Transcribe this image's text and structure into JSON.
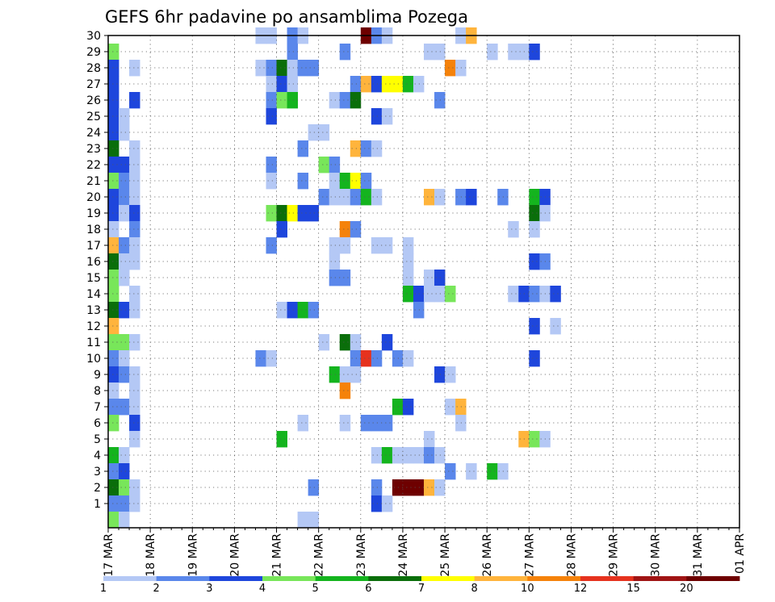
{
  "chart_data": {
    "type": "heatmap",
    "title": "GEFS 6hr padavine po ansamblima Pozega",
    "xlabel": "",
    "ylabel": "",
    "x_ticks": [
      "17 MAR",
      "18 MAR",
      "19 MAR",
      "20 MAR",
      "21 MAR",
      "22 MAR",
      "23 MAR",
      "24 MAR",
      "25 MAR",
      "26 MAR",
      "27 MAR",
      "28 MAR",
      "29 MAR",
      "30 MAR",
      "31 MAR",
      "01 APR"
    ],
    "y_ticks": [
      1,
      2,
      3,
      4,
      5,
      6,
      7,
      8,
      9,
      10,
      11,
      12,
      13,
      14,
      15,
      16,
      17,
      18,
      19,
      20,
      21,
      22,
      23,
      24,
      25,
      26,
      27,
      28,
      29,
      30
    ],
    "time_steps_per_day": 4,
    "grid": true,
    "legend": {
      "placement": "bottom",
      "thresholds": [
        "1",
        "2",
        "3",
        "4",
        "5",
        "6",
        "7",
        "8",
        "10",
        "12",
        "15",
        "20"
      ],
      "colors": [
        "#b4c8f5",
        "#5a87eb",
        "#1e46dc",
        "#78e65a",
        "#14b41e",
        "#0a6e0a",
        "#ffff00",
        "#ffb43c",
        "#f5820a",
        "#e6321e",
        "#a01414",
        "#6e0000"
      ]
    },
    "cells": [
      {
        "e": 30,
        "t": 14,
        "c": 0
      },
      {
        "e": 30,
        "t": 15,
        "c": 0
      },
      {
        "e": 30,
        "t": 17,
        "c": 1
      },
      {
        "e": 30,
        "t": 18,
        "c": 0
      },
      {
        "e": 30,
        "t": 24,
        "c": 11
      },
      {
        "e": 30,
        "t": 25,
        "c": 1
      },
      {
        "e": 30,
        "t": 26,
        "c": 0
      },
      {
        "e": 30,
        "t": 33,
        "c": 0
      },
      {
        "e": 30,
        "t": 34,
        "c": 7
      },
      {
        "e": 29,
        "t": 0,
        "c": 3
      },
      {
        "e": 29,
        "t": 17,
        "c": 1
      },
      {
        "e": 29,
        "t": 22,
        "c": 1
      },
      {
        "e": 29,
        "t": 30,
        "c": 0
      },
      {
        "e": 29,
        "t": 31,
        "c": 0
      },
      {
        "e": 29,
        "t": 36,
        "c": 0
      },
      {
        "e": 29,
        "t": 38,
        "c": 0
      },
      {
        "e": 29,
        "t": 39,
        "c": 0
      },
      {
        "e": 29,
        "t": 40,
        "c": 2
      },
      {
        "e": 28,
        "t": 0,
        "c": 2
      },
      {
        "e": 28,
        "t": 2,
        "c": 0
      },
      {
        "e": 28,
        "t": 14,
        "c": 0
      },
      {
        "e": 28,
        "t": 15,
        "c": 1
      },
      {
        "e": 28,
        "t": 16,
        "c": 5
      },
      {
        "e": 28,
        "t": 17,
        "c": 0
      },
      {
        "e": 28,
        "t": 18,
        "c": 1
      },
      {
        "e": 28,
        "t": 19,
        "c": 1
      },
      {
        "e": 28,
        "t": 32,
        "c": 8
      },
      {
        "e": 28,
        "t": 33,
        "c": 0
      },
      {
        "e": 27,
        "t": 0,
        "c": 2
      },
      {
        "e": 27,
        "t": 15,
        "c": 0
      },
      {
        "e": 27,
        "t": 16,
        "c": 2
      },
      {
        "e": 27,
        "t": 17,
        "c": 0
      },
      {
        "e": 27,
        "t": 23,
        "c": 1
      },
      {
        "e": 27,
        "t": 24,
        "c": 7
      },
      {
        "e": 27,
        "t": 25,
        "c": 2
      },
      {
        "e": 27,
        "t": 26,
        "c": 6
      },
      {
        "e": 27,
        "t": 27,
        "c": 6
      },
      {
        "e": 27,
        "t": 28,
        "c": 4
      },
      {
        "e": 27,
        "t": 29,
        "c": 0
      },
      {
        "e": 26,
        "t": 0,
        "c": 2
      },
      {
        "e": 26,
        "t": 2,
        "c": 2
      },
      {
        "e": 26,
        "t": 15,
        "c": 1
      },
      {
        "e": 26,
        "t": 16,
        "c": 3
      },
      {
        "e": 26,
        "t": 17,
        "c": 4
      },
      {
        "e": 26,
        "t": 21,
        "c": 0
      },
      {
        "e": 26,
        "t": 22,
        "c": 1
      },
      {
        "e": 26,
        "t": 23,
        "c": 5
      },
      {
        "e": 26,
        "t": 31,
        "c": 1
      },
      {
        "e": 25,
        "t": 0,
        "c": 2
      },
      {
        "e": 25,
        "t": 1,
        "c": 0
      },
      {
        "e": 25,
        "t": 15,
        "c": 2
      },
      {
        "e": 25,
        "t": 25,
        "c": 2
      },
      {
        "e": 25,
        "t": 26,
        "c": 0
      },
      {
        "e": 24,
        "t": 0,
        "c": 2
      },
      {
        "e": 24,
        "t": 1,
        "c": 0
      },
      {
        "e": 24,
        "t": 19,
        "c": 0
      },
      {
        "e": 24,
        "t": 20,
        "c": 0
      },
      {
        "e": 23,
        "t": 0,
        "c": 5
      },
      {
        "e": 23,
        "t": 2,
        "c": 0
      },
      {
        "e": 23,
        "t": 18,
        "c": 1
      },
      {
        "e": 23,
        "t": 23,
        "c": 7
      },
      {
        "e": 23,
        "t": 24,
        "c": 1
      },
      {
        "e": 23,
        "t": 25,
        "c": 0
      },
      {
        "e": 22,
        "t": 0,
        "c": 2
      },
      {
        "e": 22,
        "t": 1,
        "c": 2
      },
      {
        "e": 22,
        "t": 2,
        "c": 0
      },
      {
        "e": 22,
        "t": 15,
        "c": 1
      },
      {
        "e": 22,
        "t": 20,
        "c": 3
      },
      {
        "e": 22,
        "t": 21,
        "c": 1
      },
      {
        "e": 21,
        "t": 0,
        "c": 3
      },
      {
        "e": 21,
        "t": 1,
        "c": 1
      },
      {
        "e": 21,
        "t": 2,
        "c": 0
      },
      {
        "e": 21,
        "t": 15,
        "c": 0
      },
      {
        "e": 21,
        "t": 18,
        "c": 1
      },
      {
        "e": 21,
        "t": 21,
        "c": 0
      },
      {
        "e": 21,
        "t": 22,
        "c": 4
      },
      {
        "e": 21,
        "t": 23,
        "c": 6
      },
      {
        "e": 21,
        "t": 24,
        "c": 1
      },
      {
        "e": 20,
        "t": 0,
        "c": 2
      },
      {
        "e": 20,
        "t": 1,
        "c": 1
      },
      {
        "e": 20,
        "t": 2,
        "c": 0
      },
      {
        "e": 20,
        "t": 20,
        "c": 1
      },
      {
        "e": 20,
        "t": 21,
        "c": 0
      },
      {
        "e": 20,
        "t": 22,
        "c": 0
      },
      {
        "e": 20,
        "t": 23,
        "c": 1
      },
      {
        "e": 20,
        "t": 24,
        "c": 4
      },
      {
        "e": 20,
        "t": 25,
        "c": 0
      },
      {
        "e": 20,
        "t": 30,
        "c": 7
      },
      {
        "e": 20,
        "t": 31,
        "c": 0
      },
      {
        "e": 20,
        "t": 33,
        "c": 1
      },
      {
        "e": 20,
        "t": 34,
        "c": 2
      },
      {
        "e": 20,
        "t": 37,
        "c": 1
      },
      {
        "e": 20,
        "t": 40,
        "c": 4
      },
      {
        "e": 20,
        "t": 41,
        "c": 2
      },
      {
        "e": 19,
        "t": 0,
        "c": 2
      },
      {
        "e": 19,
        "t": 1,
        "c": 0
      },
      {
        "e": 19,
        "t": 2,
        "c": 2
      },
      {
        "e": 19,
        "t": 15,
        "c": 3
      },
      {
        "e": 19,
        "t": 16,
        "c": 5
      },
      {
        "e": 19,
        "t": 17,
        "c": 6
      },
      {
        "e": 19,
        "t": 18,
        "c": 2
      },
      {
        "e": 19,
        "t": 19,
        "c": 2
      },
      {
        "e": 19,
        "t": 40,
        "c": 5
      },
      {
        "e": 19,
        "t": 41,
        "c": 0
      },
      {
        "e": 18,
        "t": 0,
        "c": 0
      },
      {
        "e": 18,
        "t": 2,
        "c": 1
      },
      {
        "e": 18,
        "t": 16,
        "c": 2
      },
      {
        "e": 18,
        "t": 22,
        "c": 8
      },
      {
        "e": 18,
        "t": 23,
        "c": 1
      },
      {
        "e": 18,
        "t": 38,
        "c": 0
      },
      {
        "e": 18,
        "t": 40,
        "c": 0
      },
      {
        "e": 17,
        "t": 0,
        "c": 7
      },
      {
        "e": 17,
        "t": 1,
        "c": 1
      },
      {
        "e": 17,
        "t": 2,
        "c": 0
      },
      {
        "e": 17,
        "t": 15,
        "c": 1
      },
      {
        "e": 17,
        "t": 21,
        "c": 0
      },
      {
        "e": 17,
        "t": 22,
        "c": 0
      },
      {
        "e": 17,
        "t": 25,
        "c": 0
      },
      {
        "e": 17,
        "t": 26,
        "c": 0
      },
      {
        "e": 17,
        "t": 28,
        "c": 0
      },
      {
        "e": 16,
        "t": 0,
        "c": 5
      },
      {
        "e": 16,
        "t": 1,
        "c": 0
      },
      {
        "e": 16,
        "t": 2,
        "c": 0
      },
      {
        "e": 16,
        "t": 21,
        "c": 0
      },
      {
        "e": 16,
        "t": 28,
        "c": 0
      },
      {
        "e": 16,
        "t": 40,
        "c": 2
      },
      {
        "e": 16,
        "t": 41,
        "c": 1
      },
      {
        "e": 15,
        "t": 0,
        "c": 3
      },
      {
        "e": 15,
        "t": 1,
        "c": 0
      },
      {
        "e": 15,
        "t": 21,
        "c": 1
      },
      {
        "e": 15,
        "t": 22,
        "c": 1
      },
      {
        "e": 15,
        "t": 28,
        "c": 0
      },
      {
        "e": 15,
        "t": 30,
        "c": 0
      },
      {
        "e": 15,
        "t": 31,
        "c": 2
      },
      {
        "e": 14,
        "t": 0,
        "c": 3
      },
      {
        "e": 14,
        "t": 2,
        "c": 0
      },
      {
        "e": 14,
        "t": 28,
        "c": 4
      },
      {
        "e": 14,
        "t": 29,
        "c": 2
      },
      {
        "e": 14,
        "t": 30,
        "c": 0
      },
      {
        "e": 14,
        "t": 31,
        "c": 0
      },
      {
        "e": 14,
        "t": 32,
        "c": 3
      },
      {
        "e": 14,
        "t": 38,
        "c": 0
      },
      {
        "e": 14,
        "t": 39,
        "c": 2
      },
      {
        "e": 14,
        "t": 40,
        "c": 1
      },
      {
        "e": 14,
        "t": 41,
        "c": 0
      },
      {
        "e": 14,
        "t": 42,
        "c": 2
      },
      {
        "e": 13,
        "t": 0,
        "c": 5
      },
      {
        "e": 13,
        "t": 1,
        "c": 2
      },
      {
        "e": 13,
        "t": 2,
        "c": 0
      },
      {
        "e": 13,
        "t": 16,
        "c": 0
      },
      {
        "e": 13,
        "t": 17,
        "c": 2
      },
      {
        "e": 13,
        "t": 18,
        "c": 4
      },
      {
        "e": 13,
        "t": 19,
        "c": 1
      },
      {
        "e": 13,
        "t": 29,
        "c": 1
      },
      {
        "e": 12,
        "t": 0,
        "c": 7
      },
      {
        "e": 12,
        "t": 40,
        "c": 2
      },
      {
        "e": 12,
        "t": 42,
        "c": 0
      },
      {
        "e": 11,
        "t": 0,
        "c": 3
      },
      {
        "e": 11,
        "t": 1,
        "c": 3
      },
      {
        "e": 11,
        "t": 2,
        "c": 0
      },
      {
        "e": 11,
        "t": 20,
        "c": 0
      },
      {
        "e": 11,
        "t": 22,
        "c": 5
      },
      {
        "e": 11,
        "t": 23,
        "c": 0
      },
      {
        "e": 11,
        "t": 26,
        "c": 2
      },
      {
        "e": 10,
        "t": 0,
        "c": 1
      },
      {
        "e": 10,
        "t": 1,
        "c": 0
      },
      {
        "e": 10,
        "t": 14,
        "c": 1
      },
      {
        "e": 10,
        "t": 15,
        "c": 0
      },
      {
        "e": 10,
        "t": 23,
        "c": 1
      },
      {
        "e": 10,
        "t": 24,
        "c": 9
      },
      {
        "e": 10,
        "t": 25,
        "c": 1
      },
      {
        "e": 10,
        "t": 27,
        "c": 1
      },
      {
        "e": 10,
        "t": 28,
        "c": 0
      },
      {
        "e": 10,
        "t": 40,
        "c": 2
      },
      {
        "e": 9,
        "t": 0,
        "c": 2
      },
      {
        "e": 9,
        "t": 1,
        "c": 1
      },
      {
        "e": 9,
        "t": 2,
        "c": 0
      },
      {
        "e": 9,
        "t": 21,
        "c": 4
      },
      {
        "e": 9,
        "t": 22,
        "c": 0
      },
      {
        "e": 9,
        "t": 23,
        "c": 0
      },
      {
        "e": 9,
        "t": 31,
        "c": 2
      },
      {
        "e": 9,
        "t": 32,
        "c": 0
      },
      {
        "e": 8,
        "t": 0,
        "c": 0
      },
      {
        "e": 8,
        "t": 2,
        "c": 0
      },
      {
        "e": 8,
        "t": 22,
        "c": 8
      },
      {
        "e": 7,
        "t": 0,
        "c": 1
      },
      {
        "e": 7,
        "t": 1,
        "c": 1
      },
      {
        "e": 7,
        "t": 2,
        "c": 0
      },
      {
        "e": 7,
        "t": 27,
        "c": 4
      },
      {
        "e": 7,
        "t": 28,
        "c": 2
      },
      {
        "e": 7,
        "t": 32,
        "c": 0
      },
      {
        "e": 7,
        "t": 33,
        "c": 7
      },
      {
        "e": 6,
        "t": 0,
        "c": 3
      },
      {
        "e": 6,
        "t": 2,
        "c": 2
      },
      {
        "e": 6,
        "t": 18,
        "c": 0
      },
      {
        "e": 6,
        "t": 22,
        "c": 0
      },
      {
        "e": 6,
        "t": 24,
        "c": 1
      },
      {
        "e": 6,
        "t": 25,
        "c": 1
      },
      {
        "e": 6,
        "t": 26,
        "c": 1
      },
      {
        "e": 6,
        "t": 33,
        "c": 0
      },
      {
        "e": 5,
        "t": 2,
        "c": 0
      },
      {
        "e": 5,
        "t": 16,
        "c": 4
      },
      {
        "e": 5,
        "t": 30,
        "c": 0
      },
      {
        "e": 5,
        "t": 39,
        "c": 7
      },
      {
        "e": 5,
        "t": 40,
        "c": 3
      },
      {
        "e": 5,
        "t": 41,
        "c": 0
      },
      {
        "e": 4,
        "t": 0,
        "c": 4
      },
      {
        "e": 4,
        "t": 1,
        "c": 0
      },
      {
        "e": 4,
        "t": 25,
        "c": 0
      },
      {
        "e": 4,
        "t": 26,
        "c": 4
      },
      {
        "e": 4,
        "t": 27,
        "c": 0
      },
      {
        "e": 4,
        "t": 28,
        "c": 0
      },
      {
        "e": 4,
        "t": 29,
        "c": 0
      },
      {
        "e": 4,
        "t": 30,
        "c": 1
      },
      {
        "e": 4,
        "t": 31,
        "c": 0
      },
      {
        "e": 3,
        "t": 0,
        "c": 1
      },
      {
        "e": 3,
        "t": 1,
        "c": 2
      },
      {
        "e": 3,
        "t": 32,
        "c": 1
      },
      {
        "e": 3,
        "t": 34,
        "c": 0
      },
      {
        "e": 3,
        "t": 36,
        "c": 4
      },
      {
        "e": 3,
        "t": 37,
        "c": 0
      },
      {
        "e": 2,
        "t": 0,
        "c": 5
      },
      {
        "e": 2,
        "t": 1,
        "c": 3
      },
      {
        "e": 2,
        "t": 2,
        "c": 0
      },
      {
        "e": 2,
        "t": 19,
        "c": 1
      },
      {
        "e": 2,
        "t": 25,
        "c": 1
      },
      {
        "e": 2,
        "t": 27,
        "c": 11
      },
      {
        "e": 2,
        "t": 28,
        "c": 11
      },
      {
        "e": 2,
        "t": 29,
        "c": 11
      },
      {
        "e": 2,
        "t": 30,
        "c": 7
      },
      {
        "e": 2,
        "t": 31,
        "c": 0
      },
      {
        "e": 1,
        "t": 0,
        "c": 1
      },
      {
        "e": 1,
        "t": 1,
        "c": 1
      },
      {
        "e": 1,
        "t": 2,
        "c": 0
      },
      {
        "e": 1,
        "t": 25,
        "c": 2
      },
      {
        "e": 1,
        "t": 26,
        "c": 0
      },
      {
        "e": 0,
        "t": 0,
        "c": 3
      },
      {
        "e": 0,
        "t": 1,
        "c": 0
      },
      {
        "e": 0,
        "t": 18,
        "c": 0
      },
      {
        "e": 0,
        "t": 19,
        "c": 0
      }
    ]
  }
}
